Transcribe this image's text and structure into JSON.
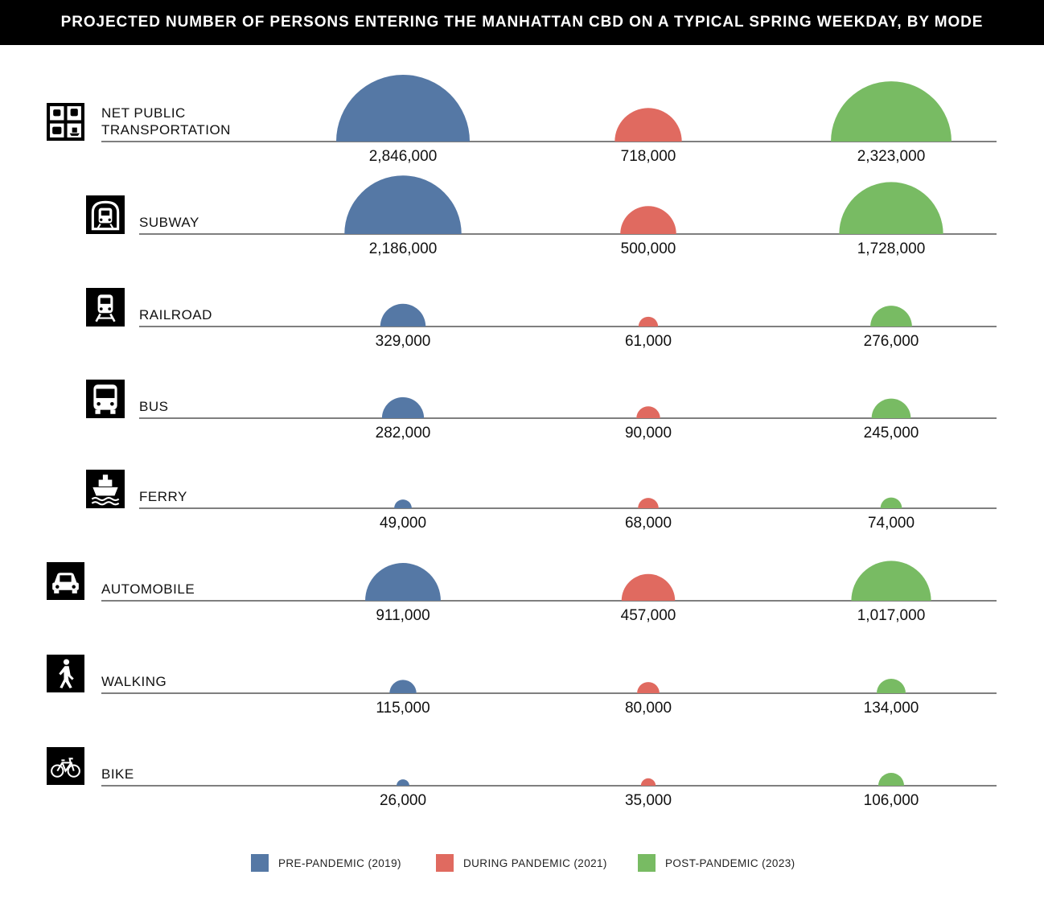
{
  "title": "PROJECTED NUMBER OF PERSONS ENTERING THE MANHATTAN CBD ON A TYPICAL SPRING WEEKDAY, BY MODE",
  "colors": {
    "pre": "#5578a5",
    "during": "#e06a60",
    "post": "#78bb63"
  },
  "chart_data": {
    "type": "proportional-semicircle",
    "title": "PROJECTED NUMBER OF PERSONS ENTERING THE MANHATTAN CBD ON A TYPICAL SPRING WEEKDAY, BY MODE",
    "series_names": [
      "PRE-PANDEMIC (2019)",
      "DURING PANDEMIC (2021)",
      "POST-PANDEMIC (2023)"
    ],
    "rows": [
      {
        "label": "NET PUBLIC\nTRANSPORTATION",
        "icon": "transit-grid-icon",
        "values": [
          2846000,
          718000,
          2323000
        ],
        "labels": [
          "2,846,000",
          "718,000",
          "2,323,000"
        ]
      },
      {
        "label": "SUBWAY",
        "icon": "subway-icon",
        "values": [
          2186000,
          500000,
          1728000
        ],
        "labels": [
          "2,186,000",
          "500,000",
          "1,728,000"
        ]
      },
      {
        "label": "RAILROAD",
        "icon": "train-icon",
        "values": [
          329000,
          61000,
          276000
        ],
        "labels": [
          "329,000",
          "61,000",
          "276,000"
        ]
      },
      {
        "label": "BUS",
        "icon": "bus-icon",
        "values": [
          282000,
          90000,
          245000
        ],
        "labels": [
          "282,000",
          "90,000",
          "245,000"
        ]
      },
      {
        "label": "FERRY",
        "icon": "ferry-icon",
        "values": [
          49000,
          68000,
          74000
        ],
        "labels": [
          "49,000",
          "68,000",
          "74,000"
        ]
      },
      {
        "label": "AUTOMOBILE",
        "icon": "car-icon",
        "values": [
          911000,
          457000,
          1017000
        ],
        "labels": [
          "911,000",
          "457,000",
          "1,017,000"
        ]
      },
      {
        "label": "WALKING",
        "icon": "pedestrian-icon",
        "values": [
          115000,
          80000,
          134000
        ],
        "labels": [
          "115,000",
          "80,000",
          "134,000"
        ]
      },
      {
        "label": "BIKE",
        "icon": "bicycle-icon",
        "values": [
          26000,
          35000,
          106000
        ],
        "labels": [
          "26,000",
          "35,000",
          "106,000"
        ]
      }
    ]
  },
  "legend": [
    {
      "key": "pre",
      "label": "PRE-PANDEMIC (2019)"
    },
    {
      "key": "during",
      "label": "DURING PANDEMIC (2021)"
    },
    {
      "key": "post",
      "label": "POST-PANDEMIC (2023)"
    }
  ]
}
